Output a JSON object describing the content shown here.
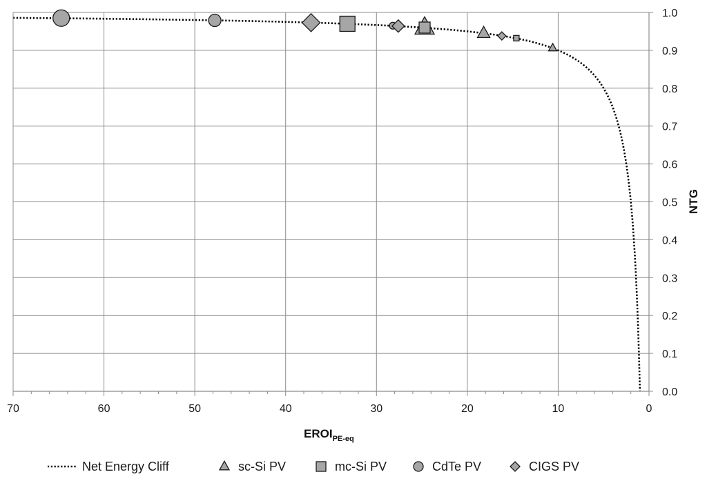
{
  "chart_data": {
    "type": "scatter",
    "xlabel_main": "EROI",
    "xlabel_sub": "PE-eq",
    "ylabel": "NTG",
    "xlim": [
      70,
      0
    ],
    "ylim": [
      0,
      1
    ],
    "x_ticks": [
      "70",
      "60",
      "50",
      "40",
      "30",
      "20",
      "10",
      "0"
    ],
    "y_ticks": [
      "0.0",
      "0.1",
      "0.2",
      "0.3",
      "0.4",
      "0.5",
      "0.6",
      "0.7",
      "0.8",
      "0.9",
      "1.0"
    ],
    "grid": true,
    "legend_position": "bottom",
    "curve": {
      "name": "Net Energy Cliff",
      "formula": "NTG = 1 - 1/EROI",
      "style": "dotted"
    },
    "series": [
      {
        "name": "sc-Si PV",
        "marker": "triangle",
        "points": [
          {
            "x": 24.7,
            "y": 0.96,
            "size": 14
          },
          {
            "x": 18.2,
            "y": 0.945,
            "size": 9
          },
          {
            "x": 10.6,
            "y": 0.906,
            "size": 6
          }
        ]
      },
      {
        "name": "mc-Si PV",
        "marker": "square",
        "points": [
          {
            "x": 33.2,
            "y": 0.97,
            "size": 11
          },
          {
            "x": 24.7,
            "y": 0.96,
            "size": 8
          },
          {
            "x": 14.6,
            "y": 0.932,
            "size": 4
          }
        ]
      },
      {
        "name": "CdTe PV",
        "marker": "circle",
        "points": [
          {
            "x": 64.7,
            "y": 0.985,
            "size": 12
          },
          {
            "x": 47.8,
            "y": 0.979,
            "size": 9
          },
          {
            "x": 28.2,
            "y": 0.965,
            "size": 5
          }
        ]
      },
      {
        "name": "CIGS PV",
        "marker": "diamond",
        "points": [
          {
            "x": 37.2,
            "y": 0.973,
            "size": 13
          },
          {
            "x": 27.6,
            "y": 0.964,
            "size": 9
          },
          {
            "x": 16.2,
            "y": 0.938,
            "size": 6
          }
        ]
      }
    ],
    "colors": {
      "marker_fill": "#a6a6a6",
      "marker_stroke": "#1a1a1a",
      "grid": "#8c8c8c",
      "curve": "#000000"
    }
  }
}
